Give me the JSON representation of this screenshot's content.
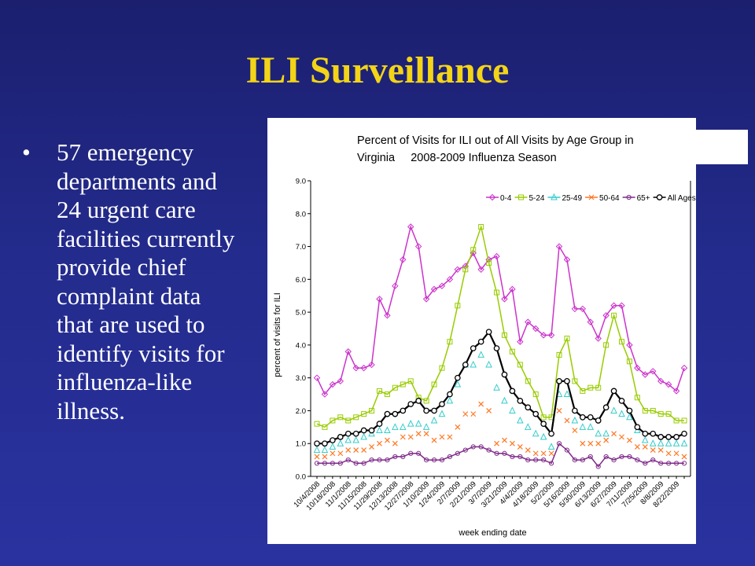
{
  "slide": {
    "title": "ILI Surveillance",
    "bullet_marker": "•",
    "bullet_lines": [
      "57 emergency",
      "departments and",
      "24 urgent care",
      "facilities currently",
      "provide chief",
      "complaint data",
      "that are used to",
      "identify visits for",
      "influenza-like",
      "illness."
    ]
  },
  "chart_data": {
    "type": "line",
    "title_lines": [
      "Percent of Visits for ILI out of All Visits by Age Group in",
      "Virginia     2008-2009 Influenza Season"
    ],
    "xlabel": "week ending date",
    "ylabel": "percent of visits for ILI",
    "ylim": [
      0,
      9
    ],
    "yticks": [
      "0.0",
      "1.0",
      "2.0",
      "3.0",
      "4.0",
      "5.0",
      "6.0",
      "7.0",
      "8.0",
      "9.0"
    ],
    "xtick_labels": [
      "10/4/2008",
      "10/18/2008",
      "11/1/2008",
      "11/15/2008",
      "11/29/2008",
      "12/13/2008",
      "12/27/2008",
      "1/10/2009",
      "1/24/2009",
      "2/7/2009",
      "2/21/2009",
      "3/7/2009",
      "3/21/2009",
      "4/4/2009",
      "4/18/2009",
      "5/2/2009",
      "5/16/2009",
      "5/30/2009",
      "6/13/2009",
      "6/27/2009",
      "7/11/2009",
      "7/25/2009",
      "8/8/2009",
      "8/22/2009"
    ],
    "legend_position": "top-right",
    "series": [
      {
        "name": "0-4",
        "color": "#cc33cc",
        "marker": "diamond",
        "values": [
          3.0,
          2.5,
          2.8,
          2.9,
          3.8,
          3.3,
          3.3,
          3.4,
          5.4,
          4.9,
          5.8,
          6.6,
          7.6,
          7.0,
          5.4,
          5.7,
          5.8,
          6.0,
          6.3,
          6.4,
          6.8,
          6.3,
          6.6,
          6.7,
          5.4,
          5.7,
          4.1,
          4.7,
          4.5,
          4.3,
          4.3,
          7.0,
          6.6,
          5.1,
          5.1,
          4.7,
          4.2,
          4.9,
          5.2,
          5.2,
          4.0,
          3.3,
          3.1,
          3.2,
          2.9,
          2.8,
          2.6,
          3.3
        ]
      },
      {
        "name": "5-24",
        "color": "#99cc00",
        "marker": "square",
        "values": [
          1.6,
          1.5,
          1.7,
          1.8,
          1.7,
          1.8,
          1.9,
          2.0,
          2.6,
          2.5,
          2.7,
          2.8,
          2.9,
          2.4,
          2.3,
          2.8,
          3.3,
          4.1,
          5.2,
          6.3,
          6.9,
          7.6,
          6.5,
          5.6,
          4.3,
          3.8,
          3.4,
          2.9,
          2.5,
          1.8,
          1.8,
          3.7,
          4.2,
          2.9,
          2.6,
          2.7,
          2.7,
          4.0,
          4.9,
          4.1,
          3.5,
          2.4,
          2.0,
          2.0,
          1.9,
          1.9,
          1.7,
          1.7
        ]
      },
      {
        "name": "25-49",
        "color": "#33cccc",
        "marker": "triangle",
        "values": [
          0.8,
          0.8,
          0.9,
          1.0,
          1.1,
          1.1,
          1.2,
          1.3,
          1.4,
          1.4,
          1.5,
          1.5,
          1.6,
          1.6,
          1.5,
          1.7,
          1.9,
          2.3,
          2.8,
          3.4,
          3.4,
          3.7,
          3.4,
          2.7,
          2.3,
          2.0,
          1.7,
          1.5,
          1.3,
          1.2,
          0.9,
          2.5,
          2.5,
          1.7,
          1.5,
          1.5,
          1.3,
          1.3,
          2.0,
          1.9,
          1.8,
          1.4,
          1.1,
          1.0,
          1.0,
          1.0,
          1.0,
          1.0
        ]
      },
      {
        "name": "50-64",
        "color": "#ff7722",
        "marker": "x",
        "values": [
          0.6,
          0.6,
          0.7,
          0.7,
          0.8,
          0.8,
          0.8,
          0.9,
          1.0,
          1.1,
          1.0,
          1.2,
          1.2,
          1.3,
          1.3,
          1.1,
          1.2,
          1.2,
          1.5,
          1.9,
          1.9,
          2.2,
          2.0,
          1.0,
          1.1,
          1.0,
          0.9,
          0.8,
          0.7,
          0.7,
          0.7,
          2.0,
          1.7,
          1.4,
          1.0,
          1.0,
          1.0,
          1.1,
          1.3,
          1.2,
          1.1,
          0.9,
          0.9,
          0.8,
          0.8,
          0.7,
          0.7,
          0.6
        ]
      },
      {
        "name": "65+",
        "color": "#7f2a8a",
        "marker": "circle",
        "values": [
          0.4,
          0.4,
          0.4,
          0.4,
          0.5,
          0.4,
          0.4,
          0.5,
          0.5,
          0.5,
          0.6,
          0.6,
          0.7,
          0.7,
          0.5,
          0.5,
          0.5,
          0.6,
          0.7,
          0.8,
          0.9,
          0.9,
          0.8,
          0.7,
          0.7,
          0.6,
          0.6,
          0.5,
          0.5,
          0.5,
          0.4,
          1.0,
          0.8,
          0.5,
          0.5,
          0.6,
          0.3,
          0.6,
          0.5,
          0.6,
          0.6,
          0.5,
          0.4,
          0.5,
          0.4,
          0.4,
          0.4,
          0.4
        ]
      },
      {
        "name": "All Ages",
        "color": "#000000",
        "marker": "open-circle",
        "values": [
          1.0,
          1.0,
          1.1,
          1.2,
          1.3,
          1.3,
          1.4,
          1.4,
          1.6,
          1.9,
          1.9,
          2.0,
          2.2,
          2.3,
          2.0,
          2.0,
          2.2,
          2.5,
          3.0,
          3.4,
          3.9,
          4.1,
          4.4,
          3.9,
          3.1,
          2.6,
          2.3,
          2.1,
          1.9,
          1.6,
          1.3,
          2.9,
          2.9,
          2.0,
          1.8,
          1.8,
          1.7,
          2.1,
          2.6,
          2.3,
          2.0,
          1.5,
          1.3,
          1.3,
          1.2,
          1.2,
          1.2,
          1.3
        ]
      }
    ]
  }
}
